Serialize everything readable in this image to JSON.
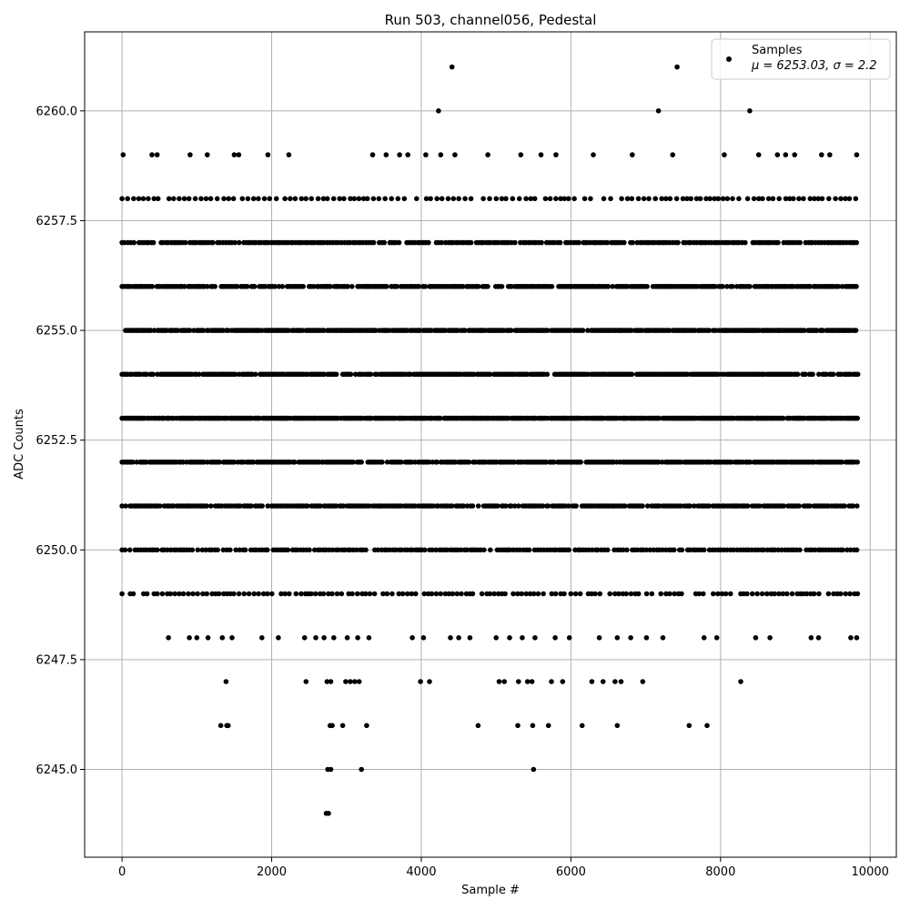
{
  "chart_data": {
    "type": "scatter",
    "title": "Run 503, channel056, Pedestal",
    "xlabel": "Sample #",
    "ylabel": "ADC Counts",
    "xlim": [
      -500,
      10350
    ],
    "ylim": [
      6243.0,
      6261.8
    ],
    "x_ticks": [
      0,
      2000,
      4000,
      6000,
      8000,
      10000
    ],
    "y_ticks": [
      6245.0,
      6247.5,
      6250.0,
      6252.5,
      6255.0,
      6257.5,
      6260.0
    ],
    "x_tick_labels": [
      "0",
      "2000",
      "4000",
      "6000",
      "8000",
      "10000"
    ],
    "y_tick_labels": [
      "6245.0",
      "6247.5",
      "6250.0",
      "6252.5",
      "6255.0",
      "6257.5",
      "6260.0"
    ],
    "grid": true,
    "legend_position": "top-right",
    "marker_color": "#000000",
    "series": [
      {
        "name": "Samples",
        "legend_stat_line": "μ = 6253.03, σ = 2.2",
        "sample_range": [
          0,
          9840
        ],
        "band_values": [
          6251,
          6252,
          6253,
          6254,
          6255,
          6256,
          6257,
          6250,
          6249,
          6258,
          6248,
          6259,
          6247,
          6246
        ],
        "points": [
          [
            4230,
            6260
          ],
          [
            4410,
            6261
          ],
          [
            7170,
            6260
          ],
          [
            7420,
            6261
          ],
          [
            8390,
            6260
          ],
          [
            2730,
            6244
          ],
          [
            2760,
            6244
          ],
          [
            2750,
            6245
          ],
          [
            2790,
            6245
          ],
          [
            3200,
            6245
          ],
          [
            5500,
            6245
          ],
          [
            1320,
            6246
          ],
          [
            1400,
            6246
          ],
          [
            1420,
            6246
          ],
          [
            2780,
            6246
          ],
          [
            2810,
            6246
          ],
          [
            2950,
            6246
          ],
          [
            3270,
            6246
          ],
          [
            4760,
            6246
          ],
          [
            5290,
            6246
          ],
          [
            5490,
            6246
          ],
          [
            5700,
            6246
          ],
          [
            6150,
            6246
          ],
          [
            6620,
            6246
          ],
          [
            7580,
            6246
          ],
          [
            7820,
            6246
          ],
          [
            1390,
            6247
          ],
          [
            2460,
            6247
          ],
          [
            2740,
            6247
          ],
          [
            2790,
            6247
          ],
          [
            2990,
            6247
          ],
          [
            3050,
            6247
          ],
          [
            3110,
            6247
          ],
          [
            3170,
            6247
          ],
          [
            3990,
            6247
          ],
          [
            4110,
            6247
          ],
          [
            5040,
            6247
          ],
          [
            5110,
            6247
          ],
          [
            5300,
            6247
          ],
          [
            5420,
            6247
          ],
          [
            5480,
            6247
          ],
          [
            5740,
            6247
          ],
          [
            5890,
            6247
          ],
          [
            6280,
            6247
          ],
          [
            6430,
            6247
          ],
          [
            6590,
            6247
          ],
          [
            6670,
            6247
          ],
          [
            6960,
            6247
          ],
          [
            8270,
            6247
          ],
          [
            620,
            6248
          ],
          [
            900,
            6248
          ],
          [
            1000,
            6248
          ],
          [
            1150,
            6248
          ],
          [
            1340,
            6248
          ],
          [
            1470,
            6248
          ],
          [
            1870,
            6248
          ],
          [
            2090,
            6248
          ],
          [
            2440,
            6248
          ],
          [
            2590,
            6248
          ],
          [
            2700,
            6248
          ],
          [
            2830,
            6248
          ],
          [
            3010,
            6248
          ],
          [
            3150,
            6248
          ],
          [
            3300,
            6248
          ],
          [
            3880,
            6248
          ],
          [
            4030,
            6248
          ],
          [
            4390,
            6248
          ],
          [
            4500,
            6248
          ],
          [
            4650,
            6248
          ],
          [
            5000,
            6248
          ],
          [
            5180,
            6248
          ],
          [
            5350,
            6248
          ],
          [
            5520,
            6248
          ],
          [
            5790,
            6248
          ],
          [
            5980,
            6248
          ],
          [
            6380,
            6248
          ],
          [
            6620,
            6248
          ],
          [
            6800,
            6248
          ],
          [
            7010,
            6248
          ],
          [
            7230,
            6248
          ],
          [
            7780,
            6248
          ],
          [
            7950,
            6248
          ],
          [
            8470,
            6248
          ],
          [
            8660,
            6248
          ],
          [
            9210,
            6248
          ],
          [
            9310,
            6248
          ],
          [
            9740,
            6248
          ],
          [
            9820,
            6248
          ],
          [
            15,
            6259
          ],
          [
            400,
            6259
          ],
          [
            470,
            6259
          ],
          [
            910,
            6259
          ],
          [
            1140,
            6259
          ],
          [
            1500,
            6259
          ],
          [
            1560,
            6259
          ],
          [
            1950,
            6259
          ],
          [
            2230,
            6259
          ],
          [
            3350,
            6259
          ],
          [
            3530,
            6259
          ],
          [
            3710,
            6259
          ],
          [
            3820,
            6259
          ],
          [
            4060,
            6259
          ],
          [
            4260,
            6259
          ],
          [
            4450,
            6259
          ],
          [
            4890,
            6259
          ],
          [
            5330,
            6259
          ],
          [
            5600,
            6259
          ],
          [
            5800,
            6259
          ],
          [
            6300,
            6259
          ],
          [
            6820,
            6259
          ],
          [
            7360,
            6259
          ],
          [
            8050,
            6259
          ],
          [
            8510,
            6259
          ],
          [
            8760,
            6259
          ],
          [
            8870,
            6259
          ],
          [
            8990,
            6259
          ],
          [
            9350,
            6259
          ],
          [
            9460,
            6259
          ],
          [
            9820,
            6259
          ]
        ]
      }
    ]
  }
}
